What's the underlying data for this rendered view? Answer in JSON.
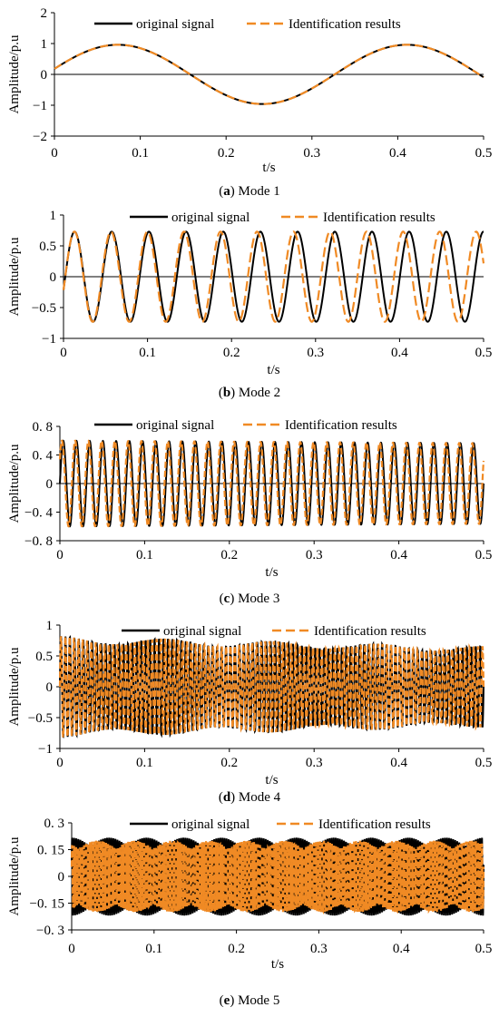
{
  "chart_data": [
    {
      "type": "line",
      "caption_letter": "a",
      "caption_text": "Mode 1",
      "xlabel": "t/s",
      "ylabel": "Amplitude/p.u",
      "xlim": [
        0,
        0.5
      ],
      "ylim": [
        -2,
        2
      ],
      "xticks": [
        "0",
        "0.1",
        "0.2",
        "0.3",
        "0.4",
        "0.5"
      ],
      "yticks": [
        "2",
        "1",
        "0",
        "−1",
        "−2"
      ],
      "legend": "top",
      "series": [
        {
          "name": "original signal",
          "color": "#000000",
          "style": "solid",
          "model": {
            "amplitude": 0.96,
            "frequency_hz": 2.97,
            "phase_rad": 0.19,
            "decay": 0
          }
        },
        {
          "name": "Identification results",
          "color": "#F08A24",
          "style": "dashed",
          "model": {
            "amplitude": 0.96,
            "frequency_hz": 2.97,
            "phase_rad": 0.19,
            "decay": 0
          }
        }
      ]
    },
    {
      "type": "line",
      "caption_letter": "b",
      "caption_text": "Mode 2",
      "xlabel": "t/s",
      "ylabel": "Amplitude/p.u",
      "xlim": [
        0,
        0.5
      ],
      "ylim": [
        -1,
        1
      ],
      "xticks": [
        "0",
        "0.1",
        "0.2",
        "0.3",
        "0.4",
        "0.5"
      ],
      "yticks": [
        "1",
        "0.5",
        "0",
        "−0.5",
        "−1"
      ],
      "legend": "top",
      "series": [
        {
          "name": "original signal",
          "color": "#000000",
          "style": "solid",
          "model": {
            "amplitude": 0.73,
            "frequency_hz": 22.6,
            "phase_rad": -0.3,
            "decay": 0
          }
        },
        {
          "name": "Identification results",
          "color": "#F08A24",
          "style": "dashed",
          "model": {
            "amplitude": 0.73,
            "frequency_hz": 23.0,
            "phase_rad": -0.3,
            "decay": 0
          }
        }
      ]
    },
    {
      "type": "line",
      "caption_letter": "c",
      "caption_text": "Mode 3",
      "xlabel": "t/s",
      "ylabel": "Amplitude/p.u",
      "xlim": [
        0,
        0.5
      ],
      "ylim": [
        -0.8,
        0.8
      ],
      "xticks": [
        "0",
        "0.1",
        "0.2",
        "0.3",
        "0.4",
        "0.5"
      ],
      "yticks": [
        "0. 8",
        "0. 4",
        "0",
        "−0. 4",
        "−0. 8"
      ],
      "legend": "top",
      "series": [
        {
          "name": "original signal",
          "color": "#000000",
          "style": "solid",
          "model": {
            "amplitude": 0.6,
            "frequency_hz": 64,
            "phase_rad": 0.0,
            "decay": 0.12
          }
        },
        {
          "name": "Identification results",
          "color": "#F08A24",
          "style": "dashed",
          "model": {
            "amplitude": 0.6,
            "frequency_hz": 64,
            "phase_rad": 0.6,
            "decay": 0.12
          }
        }
      ]
    },
    {
      "type": "line",
      "caption_letter": "d",
      "caption_text": "Mode 4",
      "xlabel": "t/s",
      "ylabel": "Amplitude/p.u",
      "xlim": [
        0,
        0.5
      ],
      "ylim": [
        -1,
        1
      ],
      "xticks": [
        "0",
        "0.1",
        "0.2",
        "0.3",
        "0.4",
        "0.5"
      ],
      "yticks": [
        "1",
        "0.5",
        "0",
        "−0.5",
        "−1"
      ],
      "legend": "top",
      "series": [
        {
          "name": "original signal",
          "color": "#000000",
          "style": "solid",
          "model": {
            "amplitude": 0.82,
            "frequency_hz": 190,
            "phase_rad": 0.0,
            "decay": 0.4
          }
        },
        {
          "name": "Identification results",
          "color": "#F08A24",
          "style": "dashed",
          "model": {
            "amplitude": 0.82,
            "frequency_hz": 195,
            "phase_rad": 0.0,
            "decay": 0.4
          }
        }
      ]
    },
    {
      "type": "line",
      "caption_letter": "e",
      "caption_text": "Mode 5",
      "xlabel": "t/s",
      "ylabel": "Amplitude/p.u",
      "xlim": [
        0,
        0.5
      ],
      "ylim": [
        -0.3,
        0.3
      ],
      "xticks": [
        "0",
        "0.1",
        "0.2",
        "0.3",
        "0.4",
        "0.5"
      ],
      "yticks": [
        "0. 3",
        "0. 15",
        "0",
        "−0. 15",
        "−0. 3"
      ],
      "legend": "top",
      "series": [
        {
          "name": "original signal",
          "color": "#000000",
          "style": "solid",
          "model": {
            "amplitude": 0.22,
            "frequency_hz": 400,
            "phase_rad": 0.0,
            "decay": 0.0
          }
        },
        {
          "name": "Identification results",
          "color": "#F08A24",
          "style": "dashed",
          "model": {
            "amplitude": 0.2,
            "frequency_hz": 412,
            "phase_rad": 0.0,
            "decay": 0.0
          }
        }
      ]
    }
  ]
}
